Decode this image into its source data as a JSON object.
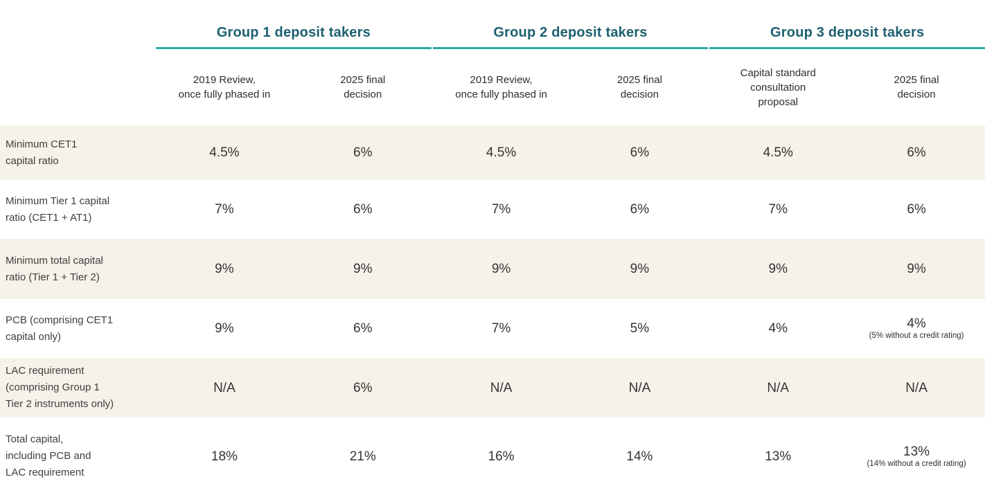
{
  "colors": {
    "group_header_text": "#1d6070",
    "group_underline": "#2aaba6",
    "shaded_row_background": "#f4f2e9",
    "body_text": "#3b3a39"
  },
  "chart_data": {
    "type": "table",
    "title": "",
    "group_headers": [
      "Group 1 deposit takers",
      "Group 2 deposit takers",
      "Group 3 deposit takers"
    ],
    "columns": [
      "2019 Review,\nonce fully phased in",
      "2025 final\ndecision",
      "2019 Review,\nonce fully phased in",
      "2025 final\ndecision",
      "Capital standard\nconsultation\nproposal",
      "2025 final\ndecision"
    ],
    "rows": [
      {
        "label": "Minimum CET1\ncapital ratio",
        "shaded": true,
        "values": [
          "4.5%",
          "6%",
          "4.5%",
          "6%",
          "4.5%",
          "6%"
        ]
      },
      {
        "label": "Minimum Tier 1 capital\nratio (CET1 + AT1)",
        "shaded": false,
        "values": [
          "7%",
          "6%",
          "7%",
          "6%",
          "7%",
          "6%"
        ]
      },
      {
        "label": "Minimum total capital\nratio (Tier 1 + Tier 2)",
        "shaded": true,
        "values": [
          "9%",
          "9%",
          "9%",
          "9%",
          "9%",
          "9%"
        ]
      },
      {
        "label": "PCB (comprising CET1\ncapital only)",
        "shaded": false,
        "values": [
          "9%",
          "6%",
          "7%",
          "5%",
          "4%",
          "4%"
        ],
        "footnote": "(5% without a credit rating)"
      },
      {
        "label": "LAC requirement\n(comprising Group 1\nTier 2 instruments only)",
        "shaded": true,
        "values": [
          "N/A",
          "6%",
          "N/A",
          "N/A",
          "N/A",
          "N/A"
        ]
      },
      {
        "label": "Total capital,\nincluding PCB and\nLAC requirement",
        "shaded": false,
        "values": [
          "18%",
          "21%",
          "16%",
          "14%",
          "13%",
          "13%"
        ],
        "footnote": "(14% without a credit rating)"
      }
    ]
  }
}
